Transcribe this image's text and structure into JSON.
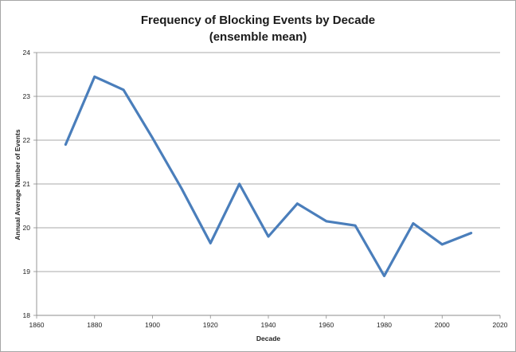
{
  "chart_data": {
    "type": "line",
    "title": "Frequency of Blocking Events by Decade",
    "subtitle": "(ensemble mean)",
    "xlabel": "Decade",
    "ylabel": "Annual Average Number of Events",
    "xlim": [
      1860,
      2020
    ],
    "ylim": [
      18,
      24
    ],
    "x_ticks": [
      1860,
      1880,
      1900,
      1920,
      1940,
      1960,
      1980,
      2000,
      2020
    ],
    "y_ticks": [
      18,
      19,
      20,
      21,
      22,
      23,
      24
    ],
    "grid": "horizontal",
    "legend": "none",
    "series": [
      {
        "color": "#4a7ebb",
        "x": [
          1870,
          1880,
          1890,
          1900,
          1910,
          1920,
          1930,
          1940,
          1950,
          1960,
          1970,
          1980,
          1990,
          2000,
          2010
        ],
        "y": [
          21.9,
          23.45,
          23.15,
          22.05,
          20.9,
          19.65,
          21.0,
          19.8,
          20.55,
          20.15,
          20.05,
          18.9,
          20.1,
          19.62,
          19.88
        ]
      }
    ]
  }
}
